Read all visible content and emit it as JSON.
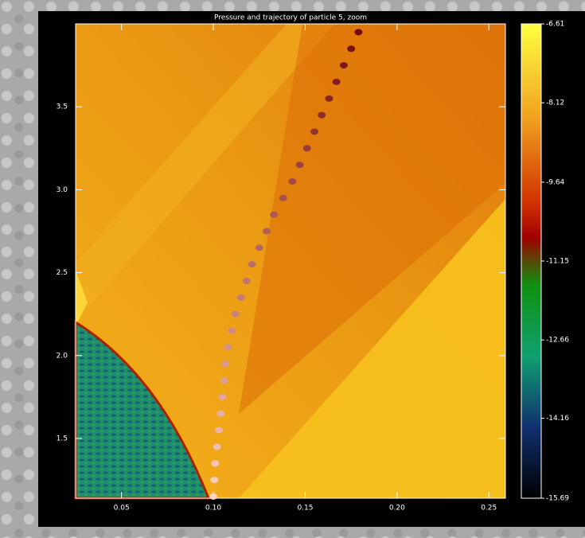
{
  "chart_data": {
    "type": "scatter",
    "title": "Pressure and trajectory of particle 5, zoom",
    "x": [
      0.1,
      0.1005,
      0.101,
      0.102,
      0.103,
      0.104,
      0.105,
      0.106,
      0.1065,
      0.108,
      0.11,
      0.112,
      0.115,
      0.118,
      0.121,
      0.125,
      0.129,
      0.133,
      0.138,
      0.143,
      0.147,
      0.151,
      0.155,
      0.159,
      0.163,
      0.167,
      0.171,
      0.175,
      0.179
    ],
    "y": [
      1.15,
      1.25,
      1.35,
      1.45,
      1.55,
      1.65,
      1.75,
      1.85,
      1.95,
      2.05,
      2.15,
      2.25,
      2.35,
      2.45,
      2.55,
      2.65,
      2.75,
      2.85,
      2.95,
      3.05,
      3.15,
      3.25,
      3.35,
      3.45,
      3.55,
      3.65,
      3.75,
      3.85,
      3.95
    ],
    "xlim": [
      0.025,
      0.259
    ],
    "ylim": [
      1.14,
      4.0
    ],
    "xticks": [
      {
        "value": 0.05,
        "label": "0.05"
      },
      {
        "value": 0.1,
        "label": "0.10"
      },
      {
        "value": 0.15,
        "label": "0.15"
      },
      {
        "value": 0.2,
        "label": "0.20"
      },
      {
        "value": 0.25,
        "label": "0.25"
      }
    ],
    "yticks": [
      {
        "value": 1.5,
        "label": "1.5"
      },
      {
        "value": 2.0,
        "label": "2.0"
      },
      {
        "value": 2.5,
        "label": "2.5"
      },
      {
        "value": 3.0,
        "label": "3.0"
      },
      {
        "value": 3.5,
        "label": "3.5"
      }
    ],
    "clim": [
      -15.69,
      -6.61
    ],
    "cticks": [
      -6.61,
      -8.12,
      -9.64,
      -11.15,
      -12.66,
      -14.16,
      -15.69
    ]
  }
}
